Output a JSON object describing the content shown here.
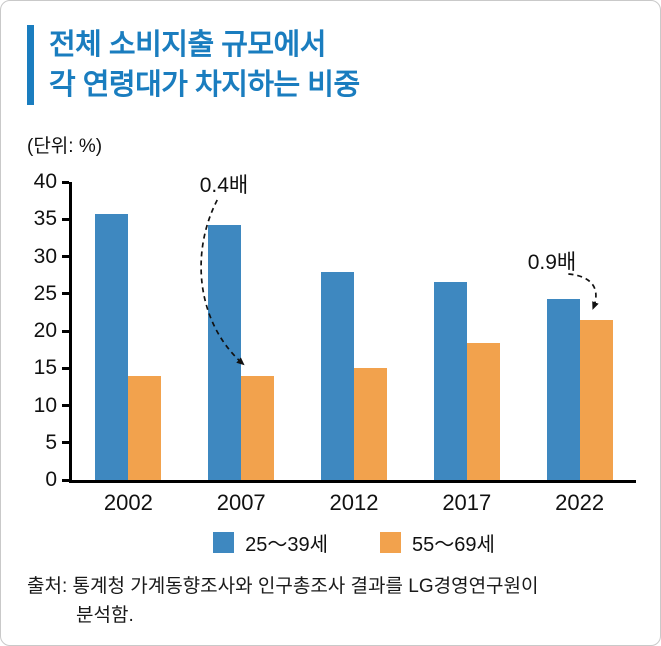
{
  "header": {
    "title_line1": "전체 소비지출 규모에서",
    "title_line2": "각 연령대가 차지하는 비중"
  },
  "chart_data": {
    "type": "bar",
    "title": "전체 소비지출 규모에서 각 연령대가 차지하는 비중",
    "unit_label": "(단위: %)",
    "categories": [
      "2002",
      "2007",
      "2012",
      "2017",
      "2022"
    ],
    "series": [
      {
        "name": "25〜39세",
        "color": "#3e88c0",
        "values": [
          35.7,
          34.3,
          27.9,
          26.6,
          24.3
        ]
      },
      {
        "name": "55〜69세",
        "color": "#f2a24d",
        "values": [
          14.0,
          14.0,
          15.0,
          18.4,
          21.5
        ]
      }
    ],
    "ylim": [
      0,
      40
    ],
    "yticks": [
      0,
      5,
      10,
      15,
      20,
      25,
      30,
      35,
      40
    ],
    "grid": false,
    "legend_position": "bottom",
    "annotations": [
      {
        "text": "0.4배",
        "target_category": "2007",
        "target_series": "55〜69세"
      },
      {
        "text": "0.9배",
        "target_category": "2022",
        "target_series": "55〜69세"
      }
    ]
  },
  "source": {
    "line1": "출처: 통계청 가계동향조사와 인구총조사 결과를 LG경영연구원이",
    "line2": "분석함."
  },
  "colors": {
    "title_blue": "#1a7dbf",
    "bar_blue": "#3e88c0",
    "bar_orange": "#f2a24d",
    "axis_black": "#000000"
  }
}
